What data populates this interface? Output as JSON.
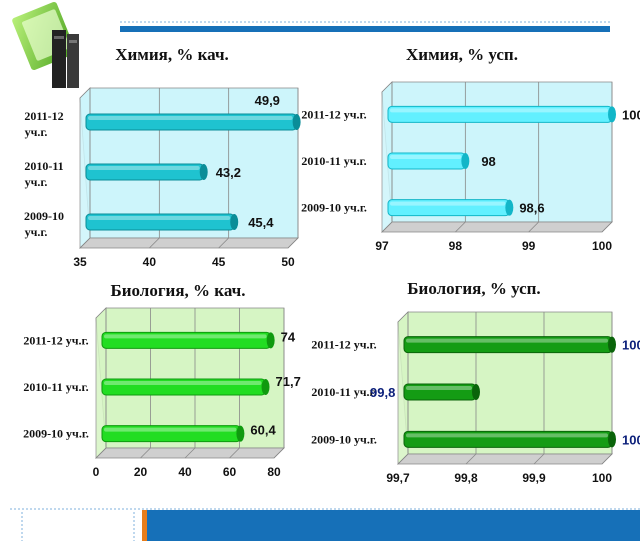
{
  "chart_data": [
    {
      "type": "bar",
      "orientation": "horizontal",
      "title": "Химия, % кач.",
      "categories": [
        "2011-12 уч.г.",
        "2010-11 уч.г.",
        "2009-10 уч.г."
      ],
      "values": [
        49.9,
        43.2,
        45.4
      ],
      "value_labels": [
        "49,9",
        "43,2",
        "45,4"
      ],
      "xlim": [
        35,
        50
      ],
      "ticks": [
        "35",
        "40",
        "45",
        "50"
      ],
      "grid": true,
      "colors": {
        "bar": "#1fc3d0",
        "bar_dark": "#0a8d98",
        "plot_bg": "#cdf5fb",
        "value": "#111111"
      }
    },
    {
      "type": "bar",
      "orientation": "horizontal",
      "title": "Химия, % усп.",
      "categories": [
        "2011-12 уч.г.",
        "2010-11 уч.г.",
        "2009-10 уч.г."
      ],
      "values": [
        100,
        98,
        98.6
      ],
      "value_labels": [
        "100",
        "98",
        "98,6"
      ],
      "xlim": [
        97,
        100
      ],
      "ticks": [
        "97",
        "98",
        "99",
        "100"
      ],
      "grid": true,
      "colors": {
        "bar": "#62f0ff",
        "bar_dark": "#12b6c8",
        "plot_bg": "#cdf5fb",
        "value": "#111111"
      }
    },
    {
      "type": "bar",
      "orientation": "horizontal",
      "title": "Биология, % кач.",
      "categories": [
        "2011-12 уч.г.",
        "2010-11 уч.г.",
        "2009-10 уч.г."
      ],
      "values": [
        74,
        71.7,
        60.4
      ],
      "value_labels": [
        "74",
        "71,7",
        "60,4"
      ],
      "xlim": [
        0,
        80
      ],
      "ticks": [
        "0",
        "20",
        "40",
        "60",
        "80"
      ],
      "grid": true,
      "colors": {
        "bar": "#22dd22",
        "bar_dark": "#0f9a0f",
        "plot_bg": "#d6f5c4",
        "value": "#111111"
      }
    },
    {
      "type": "bar",
      "orientation": "horizontal",
      "title": "Биология, % усп.",
      "categories": [
        "2011-12 уч.г.",
        "2010-11 уч.г.",
        "2009-10 уч.г."
      ],
      "values": [
        100,
        99.8,
        100
      ],
      "value_labels": [
        "100",
        "99,8",
        "100"
      ],
      "xlim": [
        99.7,
        100
      ],
      "ticks": [
        "99,7",
        "99,8",
        "99,9",
        "100"
      ],
      "grid": true,
      "colors": {
        "bar": "#149c14",
        "bar_dark": "#0a640a",
        "plot_bg": "#d6f5c4",
        "value": "#0b1f7a"
      }
    }
  ],
  "decor": {
    "accent_blue": "#1670b8",
    "accent_orange": "#e87d1a",
    "icon": "books-icon"
  }
}
